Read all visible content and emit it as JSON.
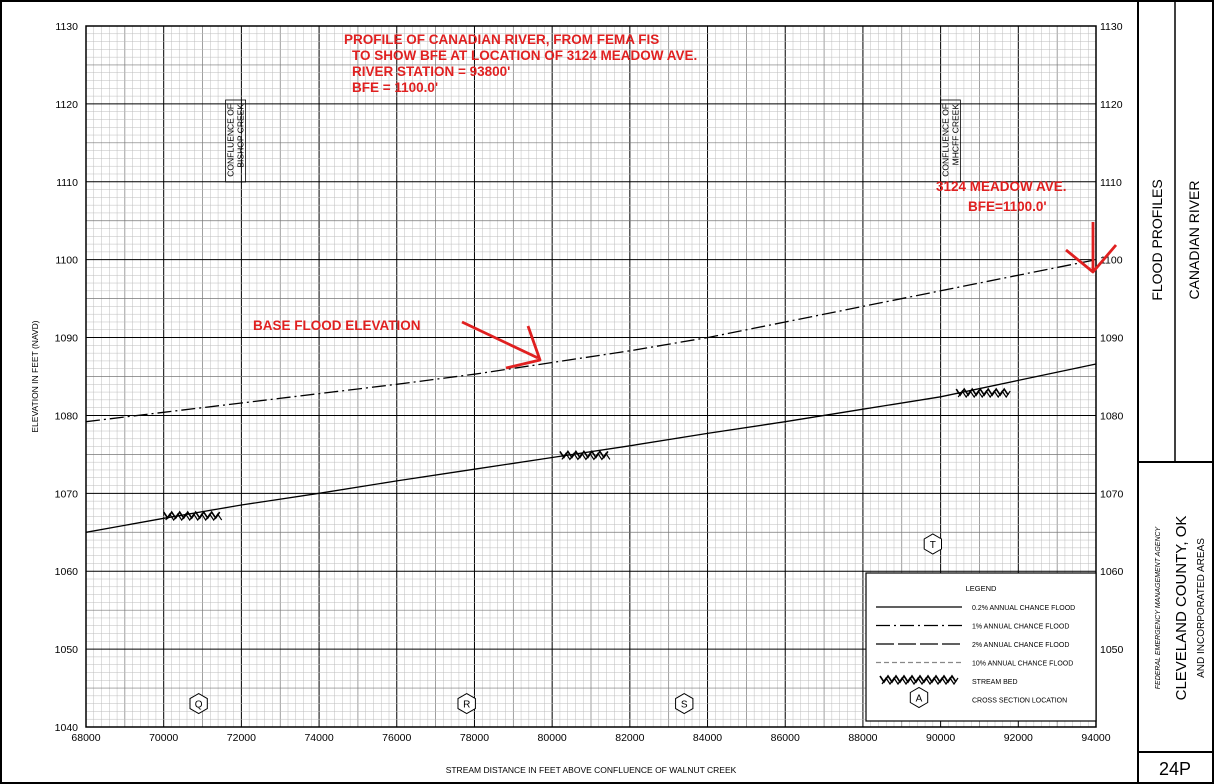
{
  "chart_data": {
    "type": "line",
    "xlabel": "STREAM DISTANCE IN FEET ABOVE CONFLUENCE OF WALNUT CREEK",
    "ylabel": "ELEVATION IN FEET (NAVD)",
    "xlim": [
      68000,
      94000
    ],
    "ylim": [
      1040,
      1130
    ],
    "x_ticks": [
      68000,
      70000,
      72000,
      74000,
      76000,
      78000,
      80000,
      82000,
      84000,
      86000,
      88000,
      90000,
      92000,
      94000
    ],
    "x_tick_labels": [
      "68000",
      "70000",
      "72000",
      "74000",
      "76000",
      "78000",
      "80000",
      "82000",
      "84000",
      "86000",
      "88000",
      "90000",
      "92000",
      "94000"
    ],
    "y_ticks": [
      1040,
      1050,
      1060,
      1070,
      1080,
      1090,
      1100,
      1110,
      1120,
      1130
    ],
    "y_tick_labels": [
      "1040",
      "1050",
      "1060",
      "1070",
      "1080",
      "1090",
      "1100",
      "1110",
      "1120",
      "1130"
    ],
    "y_ticks_right": [
      1050,
      1060,
      1070,
      1080,
      1090,
      1100,
      1110,
      1120,
      1130
    ],
    "grid": true,
    "series": [
      {
        "name": "0.2% ANNUAL CHANCE FLOOD",
        "style": "solid",
        "x": [
          68000,
          70000,
          72000,
          74000,
          76000,
          78000,
          80000,
          82000,
          84000,
          86000,
          88000,
          90000,
          92000,
          94000
        ],
        "y": [
          1065.0,
          1066.8,
          1068.5,
          1070.0,
          1071.6,
          1073.1,
          1074.6,
          1076.1,
          1077.7,
          1079.2,
          1080.8,
          1082.4,
          1084.5,
          1086.6
        ]
      },
      {
        "name": "1% ANNUAL CHANCE FLOOD",
        "style": "dashdot",
        "x": [
          68000,
          70000,
          72000,
          74000,
          76000,
          78000,
          80000,
          82000,
          84000,
          86000,
          88000,
          90000,
          92000,
          94000
        ],
        "y": [
          1079.2,
          1080.4,
          1081.6,
          1082.8,
          1084.0,
          1085.3,
          1086.8,
          1088.3,
          1090.0,
          1092.0,
          1094.0,
          1096.0,
          1098.0,
          1100.0
        ]
      }
    ],
    "stream_bed_x_ranges": [
      [
        70000,
        71500
      ],
      [
        80200,
        81500
      ],
      [
        90400,
        91800
      ]
    ],
    "stream_bed_y": [
      1067.2,
      1075.0,
      1083.0
    ],
    "cross_sections": [
      {
        "label": "Q",
        "x": 70900,
        "y": 1043
      },
      {
        "label": "R",
        "x": 77800,
        "y": 1043
      },
      {
        "label": "S",
        "x": 83400,
        "y": 1043
      },
      {
        "label": "T",
        "x": 89800,
        "y": 1063.5
      }
    ],
    "confluence_labels": [
      {
        "lines": [
          "CONFLUENCE OF",
          "BISHOP CREEK"
        ],
        "x": 71800
      },
      {
        "lines": [
          "CONFLUENCE OF",
          "MHCFF CREEK"
        ],
        "x": 90200
      }
    ],
    "annotations": [
      {
        "lines": [
          "PROFILE OF CANADIAN RIVER, FROM FEMA FIS",
          " TO SHOW BFE AT LOCATION OF 3124 MEADOW AVE.",
          "  RIVER STATION = 93800'",
          "  BFE = 1100.0'"
        ]
      },
      {
        "lines": [
          "BASE FLOOD ELEVATION"
        ]
      },
      {
        "lines": [
          "3124 MEADOW AVE.",
          "     BFE=1100.0'"
        ]
      }
    ],
    "annotation_color": "#e02020"
  },
  "legend": {
    "title": "LEGEND",
    "items": [
      {
        "label": "0.2% ANNUAL CHANCE FLOOD",
        "style": "solid"
      },
      {
        "label": "1% ANNUAL CHANCE FLOOD",
        "style": "dashdot"
      },
      {
        "label": "2% ANNUAL CHANCE FLOOD",
        "style": "longdash"
      },
      {
        "label": "10% ANNUAL CHANCE FLOOD",
        "style": "dashed-gray"
      },
      {
        "label": "STREAM BED",
        "style": "hatch"
      },
      {
        "label": "CROSS SECTION LOCATION",
        "style": "hexagon",
        "symbol": "A"
      }
    ]
  },
  "title_block": {
    "title1": "FLOOD PROFILES",
    "title2": "CANADIAN RIVER",
    "agency": "FEDERAL EMERGENCY MANAGEMENT AGENCY",
    "county": "CLEVELAND COUNTY, OK",
    "areas": "AND INCORPORATED AREAS",
    "panel": "24P"
  }
}
